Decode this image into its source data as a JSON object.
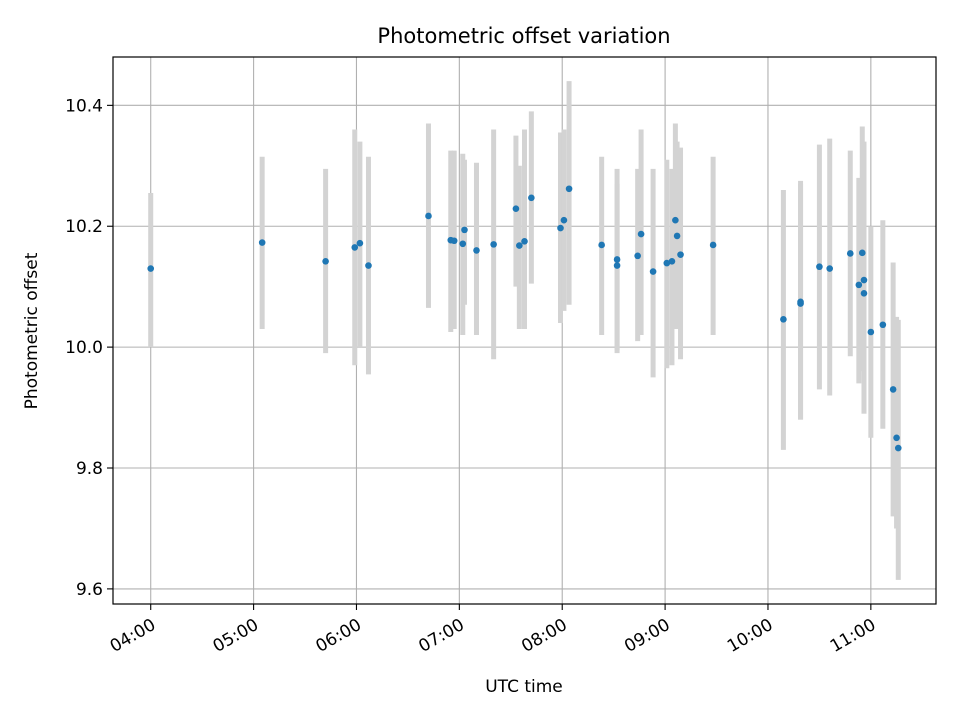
{
  "chart_data": {
    "type": "scatter",
    "title": "Photometric offset variation",
    "xlabel": "UTC time",
    "ylabel": "Photometric offset",
    "x_ticks": [
      "04:00",
      "05:00",
      "06:00",
      "07:00",
      "08:00",
      "09:00",
      "10:00",
      "11:00"
    ],
    "y_ticks": [
      "9.6",
      "9.8",
      "10.0",
      "10.2",
      "10.4"
    ],
    "xlim": [
      "03:38",
      "11:38"
    ],
    "ylim": [
      9.575,
      10.48
    ],
    "grid": true,
    "colors": {
      "points": "#1f77b4",
      "errorbars": "#d3d3d3",
      "grid": "#b0b0b0"
    },
    "series": [
      {
        "x": [
          "04:00",
          "05:05",
          "05:42",
          "05:59",
          "06:02",
          "06:07",
          "06:42",
          "06:55",
          "06:57",
          "07:02",
          "07:03",
          "07:10",
          "07:20",
          "07:33",
          "07:35",
          "07:38",
          "07:42",
          "07:59",
          "08:01",
          "08:04",
          "08:23",
          "08:32",
          "08:32",
          "08:44",
          "08:46",
          "08:53",
          "09:01",
          "09:04",
          "09:06",
          "09:07",
          "09:09",
          "09:28",
          "10:09",
          "10:19",
          "10:19",
          "10:30",
          "10:36",
          "10:48",
          "10:53",
          "10:55",
          "10:56",
          "10:56",
          "11:00",
          "11:07",
          "11:13",
          "11:15",
          "11:16"
        ],
        "y": [
          10.13,
          10.173,
          10.142,
          10.165,
          10.172,
          10.135,
          10.217,
          10.177,
          10.176,
          10.171,
          10.194,
          10.16,
          10.17,
          10.229,
          10.168,
          10.175,
          10.247,
          10.197,
          10.21,
          10.262,
          10.169,
          10.145,
          10.135,
          10.151,
          10.187,
          10.125,
          10.139,
          10.142,
          10.21,
          10.184,
          10.153,
          10.169,
          10.046,
          10.075,
          10.072,
          10.133,
          10.13,
          10.155,
          10.103,
          10.156,
          10.111,
          10.089,
          10.025,
          10.037,
          9.93,
          9.85,
          9.833
        ],
        "err_low": [
          10.0,
          10.03,
          9.99,
          9.97,
          10.0,
          9.955,
          10.065,
          10.025,
          10.03,
          10.02,
          10.07,
          10.02,
          9.98,
          10.1,
          10.03,
          10.03,
          10.105,
          10.04,
          10.06,
          10.07,
          10.02,
          9.99,
          9.995,
          10.01,
          10.02,
          9.95,
          9.965,
          9.97,
          10.03,
          10.03,
          9.98,
          10.02,
          9.83,
          9.88,
          9.88,
          9.93,
          9.92,
          9.985,
          9.94,
          9.96,
          9.89,
          9.89,
          9.85,
          9.865,
          9.72,
          9.7,
          9.615
        ],
        "err_high": [
          10.255,
          10.315,
          10.295,
          10.36,
          10.34,
          10.315,
          10.37,
          10.325,
          10.325,
          10.32,
          10.31,
          10.305,
          10.36,
          10.35,
          10.3,
          10.36,
          10.39,
          10.355,
          10.36,
          10.44,
          10.315,
          10.295,
          10.27,
          10.295,
          10.36,
          10.295,
          10.31,
          10.295,
          10.37,
          10.34,
          10.33,
          10.315,
          10.26,
          10.275,
          10.27,
          10.335,
          10.345,
          10.325,
          10.28,
          10.365,
          10.34,
          10.335,
          10.2,
          10.21,
          10.14,
          10.05,
          10.045
        ]
      }
    ]
  }
}
